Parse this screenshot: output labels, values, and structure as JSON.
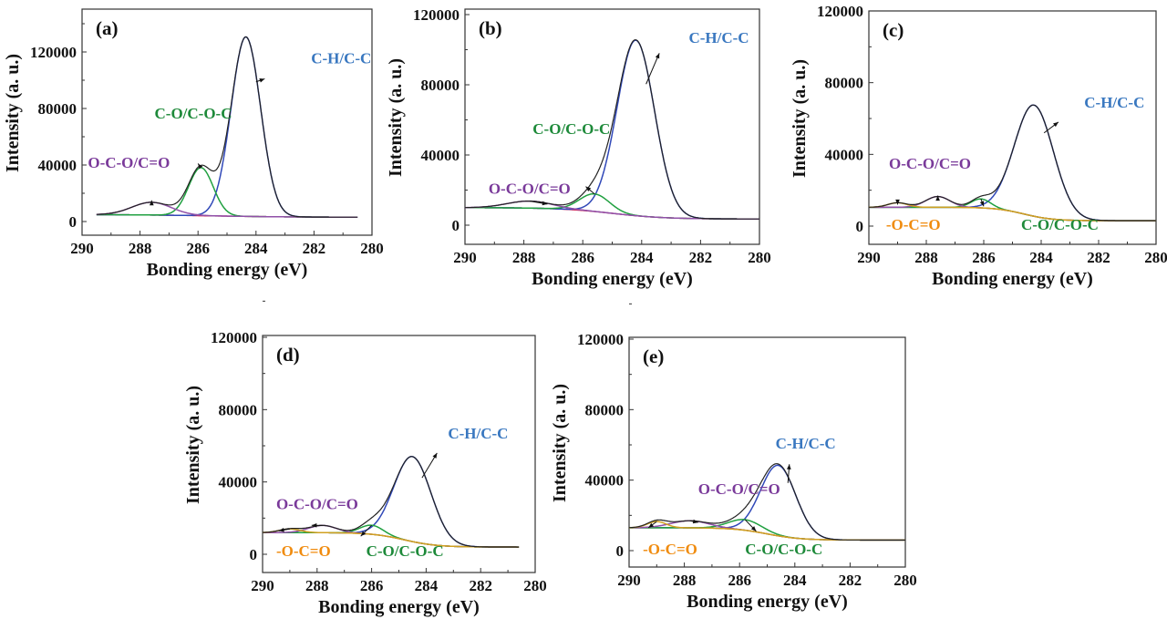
{
  "chart_data": [
    {
      "panel": "(a)",
      "type": "line",
      "xlabel": "Bonding energy (eV)",
      "ylabel": "Intensity (a. u.)",
      "xlim": [
        290,
        280
      ],
      "ylim": [
        -10000,
        150000
      ],
      "xticks": [
        290,
        288,
        286,
        284,
        282,
        280
      ],
      "yticks": [
        0,
        40000,
        80000,
        120000
      ],
      "x_range": [
        289.5,
        280.5
      ],
      "baseline": {
        "high": 5000,
        "low": 3000,
        "center": 285.5,
        "width": 1.5,
        "color": "#d03060"
      },
      "envelope_color": "#222222",
      "peaks": [
        {
          "name": "C-H/C-C",
          "center": 284.35,
          "height": 127000,
          "fwhm": 1.2,
          "color": "#3048b8",
          "label_color": "#3a78c0"
        },
        {
          "name": "C-O/C-O-C",
          "center": 285.9,
          "height": 34000,
          "fwhm": 1.0,
          "color": "#20a040",
          "label_color": "#1e8a3a"
        },
        {
          "name": "O-C-O/C=O",
          "center": 287.6,
          "height": 9000,
          "fwhm": 1.6,
          "color": "#9050a8",
          "label_color": "#7a3a9a"
        }
      ]
    },
    {
      "panel": "(b)",
      "type": "line",
      "xlabel": "Bonding energy (eV)",
      "ylabel": "Intensity (a. u.)",
      "xlim": [
        290,
        280
      ],
      "ylim": [
        -11000,
        123000
      ],
      "xticks": [
        290,
        288,
        286,
        284,
        282,
        280
      ],
      "yticks": [
        0,
        40000,
        80000,
        120000
      ],
      "x_range": [
        290,
        280
      ],
      "baseline": {
        "high": 10000,
        "low": 3500,
        "center": 285.0,
        "width": 0.9,
        "color": "#d03060"
      },
      "envelope_color": "#222222",
      "peaks": [
        {
          "name": "C-H/C-C",
          "center": 284.2,
          "height": 100000,
          "fwhm": 1.5,
          "color": "#3048b8",
          "label_color": "#3a78c0"
        },
        {
          "name": "C-O/C-O-C",
          "center": 285.6,
          "height": 10000,
          "fwhm": 1.2,
          "color": "#20a040",
          "label_color": "#1e8a3a"
        },
        {
          "name": "O-C-O/C=O",
          "center": 287.8,
          "height": 4000,
          "fwhm": 1.8,
          "color": "#9050a8",
          "label_color": "#7a3a9a"
        }
      ]
    },
    {
      "panel": "(c)",
      "type": "line",
      "xlabel": "Bonding energy (eV)",
      "ylabel": "Intensity (a. u.)",
      "xlim": [
        290,
        280
      ],
      "ylim": [
        -10000,
        120000
      ],
      "xticks": [
        290,
        288,
        286,
        284,
        282,
        280
      ],
      "yticks": [
        0,
        40000,
        80000,
        120000
      ],
      "x_range": [
        290,
        280
      ],
      "baseline": {
        "high": 10500,
        "low": 3000,
        "center": 284.6,
        "width": 0.5,
        "color": "#d0a020"
      },
      "envelope_color": "#222222",
      "peaks": [
        {
          "name": "C-H/C-C",
          "center": 284.25,
          "height": 62000,
          "fwhm": 1.6,
          "color": "#3048b8",
          "label_color": "#3a78c0"
        },
        {
          "name": "C-O/C-O-C",
          "center": 286.1,
          "height": 5000,
          "fwhm": 0.8,
          "color": "#20a040",
          "label_color": "#1e8a3a"
        },
        {
          "name": "O-C-O/C=O",
          "center": 287.6,
          "height": 6000,
          "fwhm": 1.0,
          "color": "#9050a8",
          "label_color": "#7a3a9a"
        },
        {
          "name": "-O-C=O",
          "center": 289.0,
          "height": 2500,
          "fwhm": 0.8,
          "color": "#d0a020",
          "label_color": "#f08c10"
        }
      ]
    },
    {
      "panel": "(d)",
      "type": "line",
      "xlabel": "Bonding energy (eV)",
      "ylabel": "Intensity (a. u.)",
      "xlim": [
        290,
        280
      ],
      "ylim": [
        -10000,
        121000
      ],
      "xticks": [
        290,
        288,
        286,
        284,
        282,
        280
      ],
      "yticks": [
        0,
        40000,
        80000,
        120000
      ],
      "x_range": [
        290,
        280.6
      ],
      "baseline": {
        "high": 12000,
        "low": 4000,
        "center": 284.8,
        "width": 0.6,
        "color": "#d0a020"
      },
      "envelope_color": "#222222",
      "peaks": [
        {
          "name": "C-H/C-C",
          "center": 284.5,
          "height": 47000,
          "fwhm": 1.6,
          "color": "#3048b8",
          "label_color": "#3a78c0"
        },
        {
          "name": "C-O/C-O-C",
          "center": 286.0,
          "height": 5000,
          "fwhm": 1.0,
          "color": "#20a040",
          "label_color": "#1e8a3a"
        },
        {
          "name": "O-C-O/C=O",
          "center": 287.8,
          "height": 4000,
          "fwhm": 1.2,
          "color": "#9050a8",
          "label_color": "#7a3a9a"
        },
        {
          "name": "-O-C=O",
          "center": 289.0,
          "height": 2000,
          "fwhm": 0.9,
          "color": "#d0a020",
          "label_color": "#f08c10"
        }
      ]
    },
    {
      "panel": "(e)",
      "type": "line",
      "xlabel": "Bonding energy (eV)",
      "ylabel": "Intensity (a. u.)",
      "xlim": [
        290,
        280
      ],
      "ylim": [
        -10000,
        121000
      ],
      "xticks": [
        290,
        288,
        286,
        284,
        282,
        280
      ],
      "yticks": [
        0,
        40000,
        80000,
        120000
      ],
      "x_range": [
        290,
        280
      ],
      "baseline": {
        "high": 13000,
        "low": 6000,
        "center": 285.0,
        "width": 0.6,
        "color": "#d0a020"
      },
      "envelope_color": "#222222",
      "peaks": [
        {
          "name": "C-H/C-C",
          "center": 284.6,
          "height": 40000,
          "fwhm": 1.5,
          "color": "#3048b8",
          "label_color": "#3a78c0"
        },
        {
          "name": "C-O/C-O-C",
          "center": 285.8,
          "height": 6000,
          "fwhm": 1.4,
          "color": "#20a040",
          "label_color": "#1e8a3a"
        },
        {
          "name": "O-C-O/C=O",
          "center": 287.8,
          "height": 4000,
          "fwhm": 1.6,
          "color": "#9050a8",
          "label_color": "#7a3a9a"
        },
        {
          "name": "-O-C=O",
          "center": 289.0,
          "height": 3500,
          "fwhm": 0.8,
          "color": "#d0a020",
          "label_color": "#f08c10"
        }
      ]
    }
  ]
}
